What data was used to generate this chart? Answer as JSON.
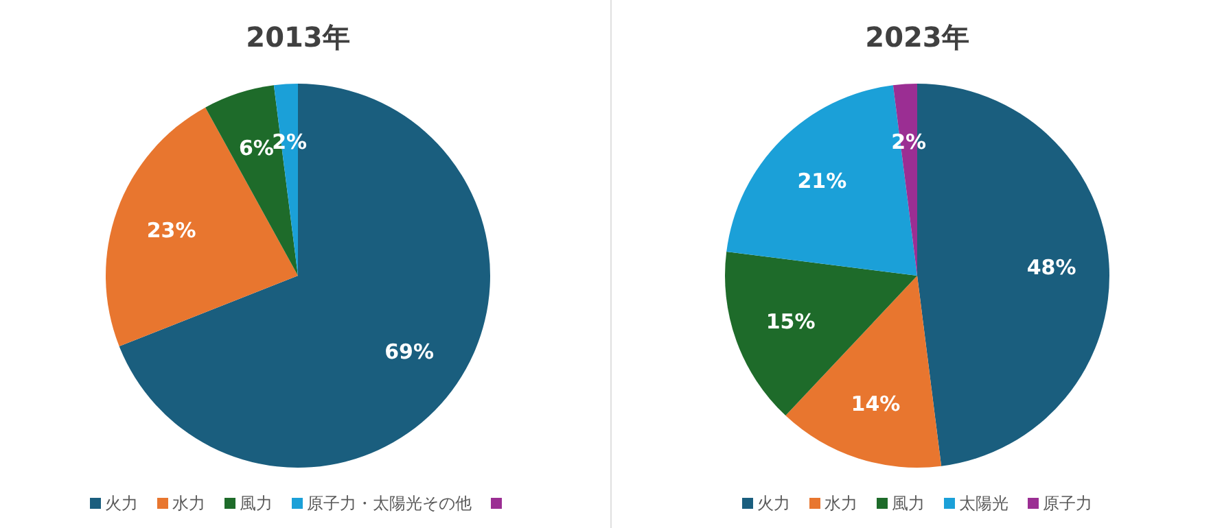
{
  "chart_data": [
    {
      "type": "pie",
      "title": "2013年",
      "categories": [
        "火力",
        "水力",
        "風力",
        "原子力・太陽光その他",
        null
      ],
      "values": [
        69,
        23,
        6,
        2,
        0
      ],
      "colors": [
        "#1a5e7e",
        "#e8762f",
        "#1e6b2a",
        "#1ba0d8",
        "#9b2e93"
      ],
      "value_labels": [
        "69%",
        "23%",
        "6%",
        "2%",
        null
      ],
      "legend": "bottom"
    },
    {
      "type": "pie",
      "title": "2023年",
      "categories": [
        "火力",
        "水力",
        "風力",
        "太陽光",
        "原子力"
      ],
      "values": [
        48,
        14,
        15,
        21,
        2
      ],
      "colors": [
        "#1a5e7e",
        "#e8762f",
        "#1e6b2a",
        "#1ba0d8",
        "#9b2e93"
      ],
      "value_labels": [
        "48%",
        "14%",
        "15%",
        "21%",
        "2%"
      ],
      "legend": "bottom"
    }
  ]
}
